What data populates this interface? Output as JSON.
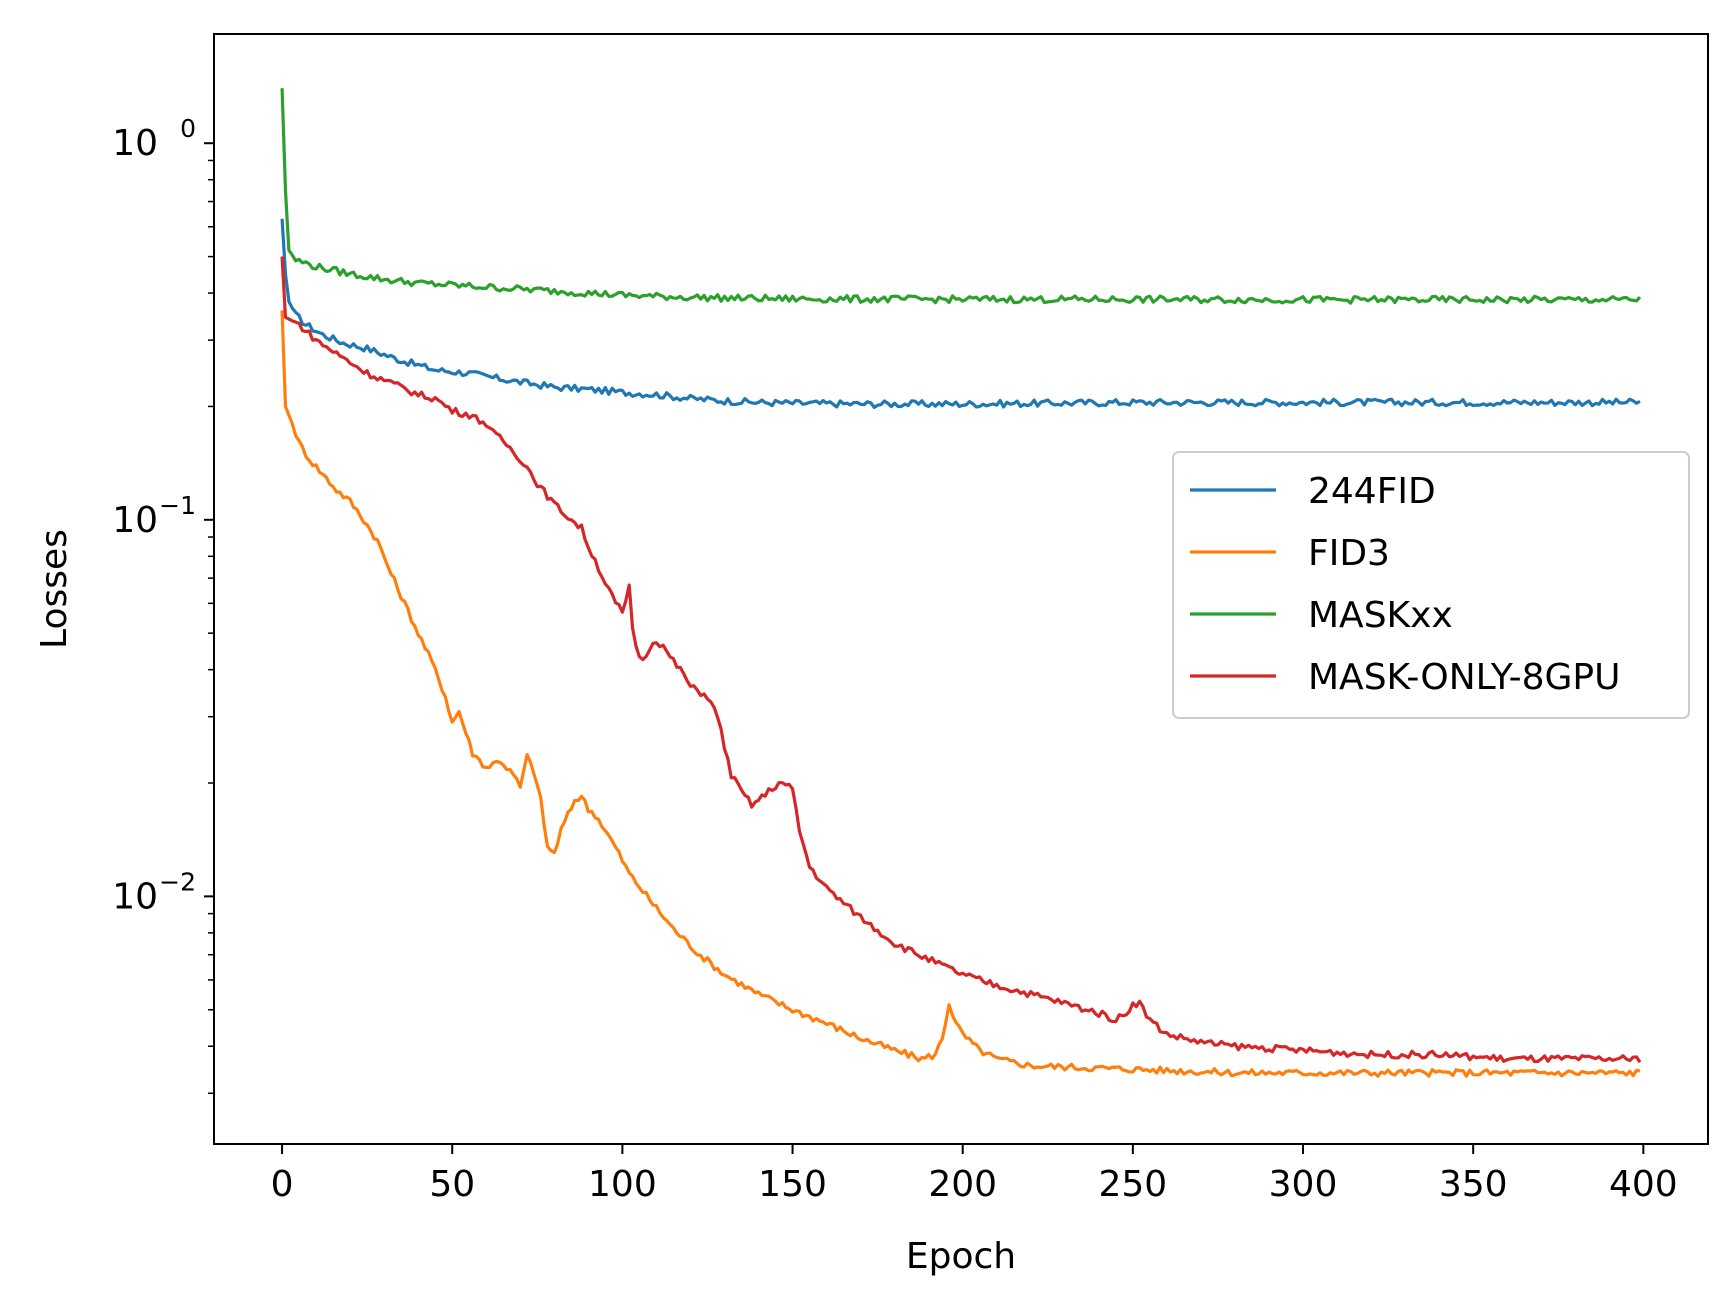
{
  "chart_data": {
    "type": "line",
    "title": "",
    "xlabel": "Epoch",
    "ylabel": "Losses",
    "xlim": [
      -20,
      419
    ],
    "ylim": [
      0.0022,
      1.95
    ],
    "yscale": "log",
    "grid": false,
    "legend_position": "center-right",
    "x_ticks": [
      0,
      50,
      100,
      150,
      200,
      250,
      300,
      350,
      400
    ],
    "y_ticks": [
      {
        "value": 1,
        "base": "10",
        "exponent": "0"
      },
      {
        "value": 0.1,
        "base": "10",
        "exponent": "−1"
      },
      {
        "value": 0.01,
        "base": "10",
        "exponent": "−2"
      }
    ],
    "series": [
      {
        "name": "244FID",
        "color": "#1f77b4",
        "points": [
          [
            0,
            0.63
          ],
          [
            1,
            0.45
          ],
          [
            2,
            0.38
          ],
          [
            4,
            0.35
          ],
          [
            7,
            0.33
          ],
          [
            12,
            0.31
          ],
          [
            18,
            0.295
          ],
          [
            25,
            0.285
          ],
          [
            35,
            0.265
          ],
          [
            45,
            0.25
          ],
          [
            55,
            0.245
          ],
          [
            60,
            0.24
          ],
          [
            70,
            0.232
          ],
          [
            80,
            0.225
          ],
          [
            90,
            0.222
          ],
          [
            100,
            0.218
          ],
          [
            110,
            0.215
          ],
          [
            120,
            0.21
          ],
          [
            130,
            0.207
          ],
          [
            140,
            0.205
          ],
          [
            150,
            0.204
          ],
          [
            170,
            0.203
          ],
          [
            200,
            0.203
          ],
          [
            250,
            0.205
          ],
          [
            300,
            0.205
          ],
          [
            350,
            0.205
          ],
          [
            400,
            0.205
          ]
        ]
      },
      {
        "name": "FID3",
        "color": "#ff7f0e",
        "points": [
          [
            0,
            0.36
          ],
          [
            1,
            0.2
          ],
          [
            3,
            0.18
          ],
          [
            5,
            0.16
          ],
          [
            8,
            0.145
          ],
          [
            12,
            0.132
          ],
          [
            16,
            0.12
          ],
          [
            20,
            0.112
          ],
          [
            24,
            0.1
          ],
          [
            28,
            0.088
          ],
          [
            32,
            0.072
          ],
          [
            36,
            0.06
          ],
          [
            40,
            0.05
          ],
          [
            44,
            0.042
          ],
          [
            48,
            0.034
          ],
          [
            50,
            0.029
          ],
          [
            52,
            0.031
          ],
          [
            56,
            0.024
          ],
          [
            60,
            0.022
          ],
          [
            64,
            0.023
          ],
          [
            68,
            0.021
          ],
          [
            70,
            0.0195
          ],
          [
            72,
            0.0235
          ],
          [
            74,
            0.0215
          ],
          [
            76,
            0.018
          ],
          [
            78,
            0.0135
          ],
          [
            80,
            0.013
          ],
          [
            82,
            0.015
          ],
          [
            86,
            0.018
          ],
          [
            88,
            0.0185
          ],
          [
            90,
            0.017
          ],
          [
            92,
            0.0165
          ],
          [
            94,
            0.0155
          ],
          [
            98,
            0.0135
          ],
          [
            102,
            0.0115
          ],
          [
            108,
            0.0098
          ],
          [
            115,
            0.0082
          ],
          [
            122,
            0.0071
          ],
          [
            130,
            0.0062
          ],
          [
            140,
            0.0055
          ],
          [
            150,
            0.005
          ],
          [
            160,
            0.0046
          ],
          [
            170,
            0.0042
          ],
          [
            180,
            0.0039
          ],
          [
            188,
            0.0037
          ],
          [
            192,
            0.0038
          ],
          [
            194,
            0.0042
          ],
          [
            196,
            0.0052
          ],
          [
            198,
            0.0046
          ],
          [
            200,
            0.0043
          ],
          [
            205,
            0.0039
          ],
          [
            210,
            0.0037
          ],
          [
            220,
            0.00355
          ],
          [
            240,
            0.0035
          ],
          [
            260,
            0.00345
          ],
          [
            280,
            0.0034
          ],
          [
            300,
            0.0034
          ],
          [
            320,
            0.0034
          ],
          [
            340,
            0.0034
          ],
          [
            360,
            0.0034
          ],
          [
            380,
            0.0034
          ],
          [
            400,
            0.0034
          ]
        ]
      },
      {
        "name": "MASKxx",
        "color": "#2ca02c",
        "points": [
          [
            0,
            1.4
          ],
          [
            1,
            0.75
          ],
          [
            2,
            0.52
          ],
          [
            4,
            0.49
          ],
          [
            10,
            0.47
          ],
          [
            20,
            0.45
          ],
          [
            30,
            0.435
          ],
          [
            40,
            0.425
          ],
          [
            50,
            0.42
          ],
          [
            60,
            0.415
          ],
          [
            70,
            0.41
          ],
          [
            80,
            0.405
          ],
          [
            90,
            0.4
          ],
          [
            100,
            0.395
          ],
          [
            110,
            0.392
          ],
          [
            120,
            0.39
          ],
          [
            130,
            0.388
          ],
          [
            140,
            0.387
          ],
          [
            150,
            0.386
          ],
          [
            200,
            0.385
          ],
          [
            250,
            0.385
          ],
          [
            300,
            0.384
          ],
          [
            350,
            0.384
          ],
          [
            400,
            0.384
          ]
        ]
      },
      {
        "name": "MASK-ONLY-8GPU",
        "color": "#d62728",
        "points": [
          [
            0,
            0.5
          ],
          [
            1,
            0.345
          ],
          [
            5,
            0.33
          ],
          [
            10,
            0.3
          ],
          [
            15,
            0.28
          ],
          [
            20,
            0.262
          ],
          [
            25,
            0.245
          ],
          [
            30,
            0.235
          ],
          [
            35,
            0.225
          ],
          [
            40,
            0.215
          ],
          [
            45,
            0.21
          ],
          [
            50,
            0.195
          ],
          [
            55,
            0.19
          ],
          [
            60,
            0.18
          ],
          [
            62,
            0.17
          ],
          [
            65,
            0.162
          ],
          [
            70,
            0.145
          ],
          [
            72,
            0.138
          ],
          [
            75,
            0.125
          ],
          [
            80,
            0.11
          ],
          [
            85,
            0.1
          ],
          [
            88,
            0.095
          ],
          [
            90,
            0.085
          ],
          [
            92,
            0.078
          ],
          [
            95,
            0.068
          ],
          [
            98,
            0.06
          ],
          [
            100,
            0.057
          ],
          [
            101,
            0.06
          ],
          [
            102,
            0.066
          ],
          [
            103,
            0.052
          ],
          [
            104,
            0.046
          ],
          [
            106,
            0.042
          ],
          [
            108,
            0.046
          ],
          [
            110,
            0.048
          ],
          [
            112,
            0.046
          ],
          [
            115,
            0.042
          ],
          [
            118,
            0.039
          ],
          [
            120,
            0.036
          ],
          [
            125,
            0.034
          ],
          [
            128,
            0.03
          ],
          [
            130,
            0.025
          ],
          [
            132,
            0.021
          ],
          [
            135,
            0.019
          ],
          [
            138,
            0.0175
          ],
          [
            140,
            0.018
          ],
          [
            143,
            0.019
          ],
          [
            146,
            0.02
          ],
          [
            148,
            0.0198
          ],
          [
            150,
            0.0192
          ],
          [
            152,
            0.015
          ],
          [
            155,
            0.012
          ],
          [
            160,
            0.0105
          ],
          [
            170,
            0.0088
          ],
          [
            180,
            0.0075
          ],
          [
            190,
            0.0068
          ],
          [
            200,
            0.0062
          ],
          [
            210,
            0.0058
          ],
          [
            220,
            0.0055
          ],
          [
            230,
            0.0052
          ],
          [
            240,
            0.0049
          ],
          [
            245,
            0.0047
          ],
          [
            248,
            0.0049
          ],
          [
            250,
            0.0052
          ],
          [
            252,
            0.0052
          ],
          [
            255,
            0.0047
          ],
          [
            260,
            0.0043
          ],
          [
            265,
            0.0042
          ],
          [
            270,
            0.0041
          ],
          [
            280,
            0.004
          ],
          [
            300,
            0.0039
          ],
          [
            320,
            0.0038
          ],
          [
            340,
            0.0038
          ],
          [
            360,
            0.0037
          ],
          [
            380,
            0.0037
          ],
          [
            400,
            0.0037
          ]
        ]
      }
    ]
  }
}
